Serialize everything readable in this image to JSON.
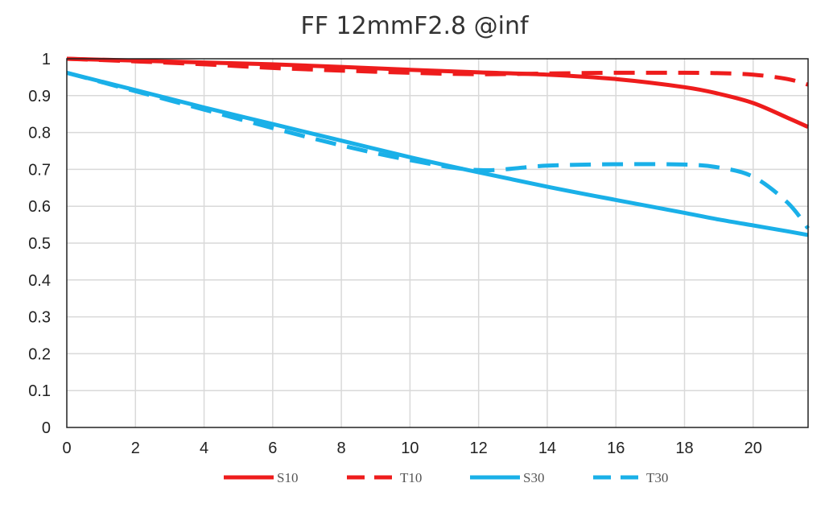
{
  "chart_data": {
    "type": "line",
    "title": "FF 12mmF2.8 @inf",
    "xlabel": "",
    "ylabel": "",
    "xlim": [
      0,
      21.6
    ],
    "ylim": [
      0,
      1
    ],
    "grid": true,
    "legend_position": "bottom",
    "x_ticks": [
      "0",
      "2",
      "4",
      "6",
      "8",
      "10",
      "12",
      "14",
      "16",
      "18",
      "20"
    ],
    "y_ticks": [
      "0",
      "0.1",
      "0.2",
      "0.3",
      "0.4",
      "0.5",
      "0.6",
      "0.7",
      "0.8",
      "0.9",
      "1"
    ],
    "x": [
      0,
      2,
      4,
      6,
      8,
      10,
      12,
      14,
      16,
      18,
      19,
      20,
      21,
      21.6
    ],
    "series": [
      {
        "name": "S10",
        "color": "#ee1c1c",
        "dash": "solid",
        "values": [
          1.0,
          0.995,
          0.99,
          0.985,
          0.978,
          0.97,
          0.963,
          0.957,
          0.945,
          0.923,
          0.905,
          0.88,
          0.84,
          0.815
        ]
      },
      {
        "name": "T10",
        "color": "#ee1c1c",
        "dash": "dashed",
        "values": [
          1.0,
          0.993,
          0.985,
          0.975,
          0.968,
          0.962,
          0.958,
          0.96,
          0.962,
          0.962,
          0.961,
          0.957,
          0.945,
          0.93
        ]
      },
      {
        "name": "S30",
        "color": "#1ab0e8",
        "dash": "solid",
        "values": [
          0.962,
          0.915,
          0.868,
          0.823,
          0.778,
          0.733,
          0.692,
          0.653,
          0.617,
          0.582,
          0.564,
          0.548,
          0.532,
          0.522
        ]
      },
      {
        "name": "T30",
        "color": "#1ab0e8",
        "dash": "dashed",
        "values": [
          0.962,
          0.912,
          0.862,
          0.812,
          0.765,
          0.725,
          0.698,
          0.71,
          0.714,
          0.713,
          0.705,
          0.68,
          0.61,
          0.54
        ]
      }
    ]
  }
}
